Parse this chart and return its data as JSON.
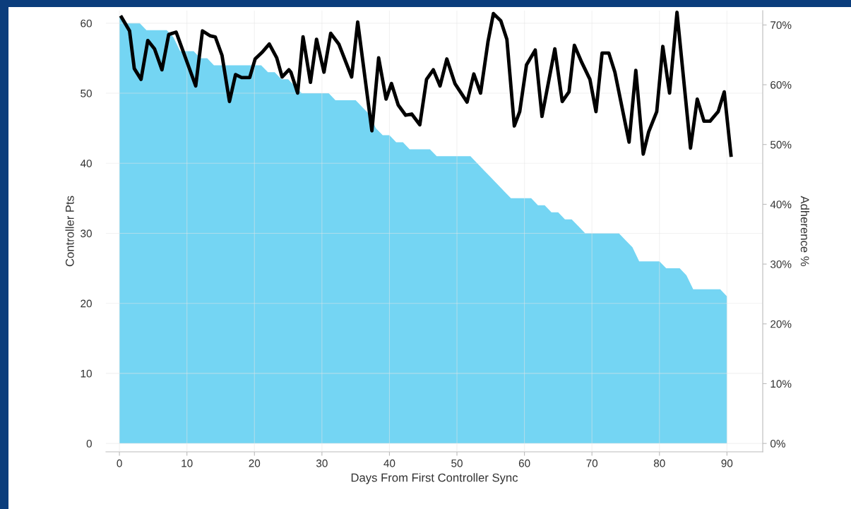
{
  "chart_data": {
    "type": "area",
    "xlabel": "Days From First Controller Sync",
    "ylabel": "Controller Pts",
    "y2label": "Adherence %",
    "xlim": [
      -2,
      95.3
    ],
    "xticks": [
      0,
      10,
      20,
      30,
      40,
      50,
      60,
      70,
      80,
      90
    ],
    "ylim": [
      -1.2,
      61.8
    ],
    "yticks": [
      0,
      10,
      20,
      30,
      40,
      50,
      60
    ],
    "y2lim": [
      -1.4,
      72.4
    ],
    "y2ticks": [
      {
        "value": 0,
        "label": "0%"
      },
      {
        "value": 10,
        "label": "10%"
      },
      {
        "value": 20,
        "label": "20%"
      },
      {
        "value": 30,
        "label": "30%"
      },
      {
        "value": 40,
        "label": "40%"
      },
      {
        "value": 50,
        "label": "50%"
      },
      {
        "value": 60,
        "label": "60%"
      },
      {
        "value": 70,
        "label": "70%"
      }
    ],
    "grid": true,
    "series": [
      {
        "color": "#74d5f3",
        "x": [
          0,
          1,
          2,
          3,
          4,
          5,
          6,
          7,
          8,
          9,
          10,
          11,
          12,
          13,
          14,
          15,
          16,
          17,
          18,
          19,
          20,
          21,
          22,
          23,
          24,
          25,
          26,
          27,
          28,
          29,
          30,
          31,
          32,
          33,
          34,
          35,
          36,
          37,
          38,
          39,
          40,
          41,
          42,
          43,
          44,
          45,
          46,
          47,
          48,
          49,
          50,
          51,
          52,
          53,
          54,
          55,
          56,
          57,
          58,
          59,
          60,
          61,
          62,
          63,
          64,
          65,
          66,
          67,
          68,
          69,
          70,
          71,
          72,
          73,
          74,
          75,
          76,
          77,
          78,
          79,
          80,
          81,
          82,
          83,
          84,
          85,
          86,
          87,
          88,
          89,
          90
        ],
        "values": [
          61,
          60,
          60,
          60,
          59,
          59,
          59,
          59,
          58,
          56,
          56,
          56,
          55,
          55,
          54,
          54,
          54,
          54,
          54,
          54,
          54,
          54,
          53,
          53,
          52,
          52,
          51,
          50,
          50,
          50,
          50,
          50,
          49,
          49,
          49,
          49,
          48,
          47,
          45,
          44,
          44,
          43,
          43,
          42,
          42,
          42,
          42,
          41,
          41,
          41,
          41,
          41,
          41,
          40,
          39,
          38,
          37,
          36,
          35,
          35,
          35,
          35,
          34,
          34,
          33,
          33,
          32,
          32,
          31,
          30,
          30,
          30,
          30,
          30,
          30,
          29,
          28,
          26,
          26,
          26,
          26,
          25,
          25,
          25,
          24,
          22,
          22,
          22,
          22,
          22,
          21
        ]
      },
      {
        "type": "line",
        "axis": "y2",
        "color": "#000000",
        "x": [
          0.3,
          1.5,
          2.2,
          3.2,
          4.2,
          5.2,
          6.3,
          7.3,
          8.4,
          11.3,
          12.3,
          13.4,
          14.2,
          15.2,
          16.3,
          17.2,
          18.1,
          19.3,
          20.1,
          21.2,
          22.2,
          23.3,
          24.1,
          25.1,
          25.4,
          26.4,
          27.2,
          28.3,
          29.2,
          30.3,
          31.3,
          32.5,
          34.4,
          35.3,
          37.4,
          38.4,
          39.5,
          40.3,
          41.3,
          42.4,
          43.3,
          44.5,
          45.5,
          46.5,
          47.5,
          48.5,
          49.7,
          51.5,
          52.5,
          53.5,
          54.6,
          55.4,
          56.5,
          57.4,
          58.5,
          59.3,
          60.3,
          61.6,
          62.6,
          64.5,
          65.6,
          66.6,
          67.4,
          68.5,
          69.7,
          70.6,
          71.5,
          72.5,
          73.4,
          75.5,
          76.5,
          77.6,
          78.4,
          79.6,
          80.5,
          81.5,
          82.6,
          84.6,
          85.6,
          86.6,
          87.5,
          88.7,
          89.6,
          90.6
        ],
        "values": [
          71.3,
          69.0,
          62.7,
          60.9,
          67.4,
          66.0,
          62.5,
          68.4,
          68.8,
          59.8,
          69.0,
          68.2,
          68.0,
          64.9,
          57.2,
          61.7,
          61.2,
          61.2,
          64.3,
          65.5,
          66.8,
          64.5,
          61.3,
          62.5,
          62.1,
          58.6,
          68.0,
          60.4,
          67.6,
          62.1,
          68.6,
          66.8,
          61.3,
          70.5,
          52.3,
          64.5,
          57.6,
          60.2,
          56.6,
          54.9,
          55.1,
          53.3,
          60.9,
          62.5,
          59.8,
          64.3,
          60.2,
          57.1,
          61.8,
          58.6,
          67.2,
          71.9,
          70.7,
          67.6,
          53.1,
          55.5,
          63.3,
          65.8,
          54.7,
          66.0,
          57.2,
          58.8,
          66.6,
          63.7,
          60.9,
          55.5,
          65.3,
          65.3,
          62.1,
          50.4,
          62.4,
          48.4,
          52.1,
          55.5,
          66.4,
          58.6,
          72.1,
          49.4,
          57.6,
          53.9,
          53.9,
          55.5,
          58.8,
          48.2
        ]
      }
    ]
  }
}
